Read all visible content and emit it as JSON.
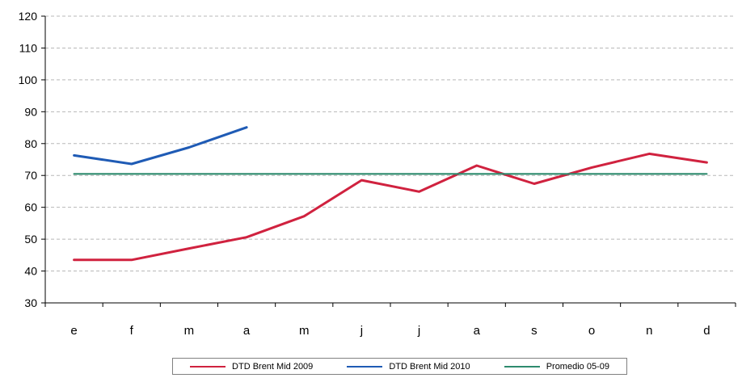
{
  "chart_data": {
    "type": "line",
    "categories": [
      "e",
      "f",
      "m",
      "a",
      "m",
      "j",
      "j",
      "a",
      "s",
      "o",
      "n",
      "d"
    ],
    "ylim": [
      30,
      120
    ],
    "yticks": [
      30,
      40,
      50,
      60,
      70,
      80,
      90,
      100,
      110,
      120
    ],
    "grid": true,
    "legend_position": "bottom",
    "series": [
      {
        "name": "DTD Brent Mid 2009",
        "color": "#d0223f",
        "values": [
          43.5,
          43.5,
          47.1,
          50.6,
          57.2,
          68.5,
          64.9,
          73.1,
          67.4,
          72.5,
          76.8,
          74.1
        ]
      },
      {
        "name": "DTD Brent Mid 2010",
        "color": "#1f5bb5",
        "values": [
          76.3,
          73.6,
          78.8,
          85.1,
          null,
          null,
          null,
          null,
          null,
          null,
          null,
          null
        ]
      },
      {
        "name": "Promedio 05-09",
        "color": "#2e8b6e",
        "values": [
          70.5,
          70.5,
          70.5,
          70.5,
          70.5,
          70.5,
          70.5,
          70.5,
          70.5,
          70.5,
          70.5,
          70.5
        ]
      }
    ]
  }
}
